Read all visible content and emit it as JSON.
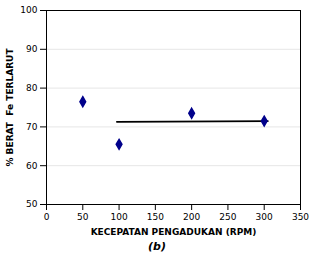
{
  "chart_data": {
    "type": "scatter",
    "subtitle": "(b)",
    "xlabel": "KECEPATAN PENGADUKAN (RPM)",
    "ylabel": "% BERAT  Fe TERLARUT",
    "xlim": [
      0,
      350
    ],
    "ylim": [
      50,
      100
    ],
    "xticks": [
      0,
      50,
      100,
      150,
      200,
      250,
      300,
      350
    ],
    "yticks": [
      50,
      60,
      70,
      80,
      90,
      100
    ],
    "grid": "y",
    "series": [
      {
        "type": "scatter",
        "x": [
          50,
          100,
          200,
          300
        ],
        "values": [
          76.5,
          65.5,
          73.5,
          71.5
        ],
        "color": "#00008B",
        "marker": "diamond"
      },
      {
        "type": "line",
        "x": [
          97,
          305
        ],
        "values": [
          71.3,
          71.5
        ],
        "color": "#000000",
        "line_style": "solid"
      }
    ]
  }
}
